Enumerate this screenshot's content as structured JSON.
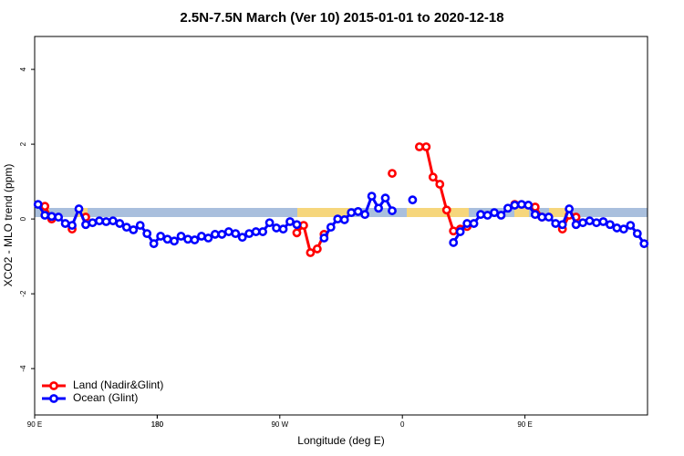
{
  "chart_data": {
    "type": "line",
    "title": "2.5N-7.5N March (Ver 10)   2015-01-01 to 2020-12-18",
    "x_label": "Longitude (deg E)",
    "y_label": "XCO2 - MLO trend (ppm)",
    "x": [
      92.5,
      97.5,
      102.5,
      107.5,
      112.5,
      117.5,
      122.5,
      127.5,
      132.5,
      137.5,
      142.5,
      147.5,
      152.5,
      157.5,
      162.5,
      167.5,
      172.5,
      177.5,
      182.5,
      187.5,
      192.5,
      197.5,
      202.5,
      207.5,
      212.5,
      217.5,
      222.5,
      227.5,
      232.5,
      237.5,
      242.5,
      247.5,
      252.5,
      257.5,
      262.5,
      267.5,
      272.5,
      277.5,
      282.5,
      287.5,
      292.5,
      297.5,
      302.5,
      307.5,
      312.5,
      317.5,
      322.5,
      327.5,
      332.5,
      337.5,
      342.5,
      347.5,
      352.5,
      357.5,
      362.5,
      367.5,
      372.5,
      377.5,
      382.5,
      387.5,
      392.5,
      397.5,
      402.5,
      407.5,
      412.5,
      417.5,
      422.5,
      427.5,
      432.5,
      437.5,
      442.5,
      447.5,
      452.5,
      457.5,
      462.5,
      467.5,
      472.5,
      477.5,
      482.5,
      487.5,
      492.5,
      497.5,
      502.5,
      507.5,
      512.5,
      517.5,
      522.5,
      527.5,
      532.5,
      537.5
    ],
    "series": [
      {
        "name": "Land (Nadir&Glint)",
        "color": "#ff0000",
        "values": [
          null,
          0.34,
          0.0,
          null,
          null,
          -0.27,
          null,
          0.05,
          null,
          null,
          null,
          null,
          null,
          null,
          null,
          null,
          null,
          null,
          null,
          null,
          null,
          null,
          null,
          null,
          null,
          null,
          null,
          null,
          null,
          null,
          null,
          null,
          null,
          null,
          null,
          null,
          null,
          null,
          -0.37,
          -0.17,
          -0.9,
          -0.8,
          -0.41,
          null,
          null,
          null,
          null,
          null,
          null,
          null,
          null,
          null,
          1.22,
          null,
          null,
          null,
          1.93,
          1.93,
          1.12,
          0.93,
          0.24,
          -0.32,
          -0.27,
          -0.2,
          null,
          null,
          null,
          null,
          null,
          null,
          0.39,
          null,
          null,
          0.32,
          0.05,
          null,
          null,
          -0.27,
          0.1,
          0.05,
          null,
          null,
          null,
          null,
          null,
          null,
          null,
          null,
          null,
          null
        ]
      },
      {
        "name": "Ocean (Glint)",
        "color": "#0000ff",
        "values": [
          0.39,
          0.1,
          0.07,
          0.05,
          -0.12,
          -0.17,
          0.27,
          -0.15,
          -0.1,
          -0.05,
          -0.07,
          -0.05,
          -0.12,
          -0.22,
          -0.29,
          -0.17,
          -0.39,
          -0.66,
          -0.46,
          -0.54,
          -0.59,
          -0.46,
          -0.54,
          -0.56,
          -0.46,
          -0.51,
          -0.41,
          -0.41,
          -0.34,
          -0.39,
          -0.49,
          -0.39,
          -0.34,
          -0.34,
          -0.1,
          -0.24,
          -0.27,
          -0.07,
          -0.15,
          null,
          null,
          null,
          -0.51,
          -0.22,
          0.0,
          -0.02,
          0.17,
          0.2,
          0.12,
          0.61,
          0.29,
          0.56,
          0.22,
          null,
          null,
          0.51,
          null,
          null,
          null,
          null,
          null,
          -0.63,
          -0.34,
          -0.12,
          -0.12,
          0.12,
          0.1,
          0.17,
          0.1,
          0.29,
          0.37,
          0.39,
          0.37,
          0.12,
          0.05,
          0.05,
          -0.12,
          -0.15,
          0.27,
          -0.15,
          -0.1,
          -0.05,
          -0.1,
          -0.07,
          -0.15,
          -0.24,
          -0.27,
          -0.17,
          -0.39,
          -0.66
        ]
      }
    ],
    "xlim": [
      90,
      540
    ],
    "ylim": [
      -5.24,
      4.88
    ],
    "xticks": [
      {
        "value": 90,
        "label": "90 E"
      },
      180,
      {
        "value": 270,
        "label": "90 W"
      },
      {
        "value": 360,
        "label": "0"
      },
      {
        "value": 450,
        "label": "90 E"
      },
      180.0001
    ],
    "yticks": [
      -4,
      -2,
      0,
      2,
      4
    ],
    "legend": "bottomleft"
  }
}
